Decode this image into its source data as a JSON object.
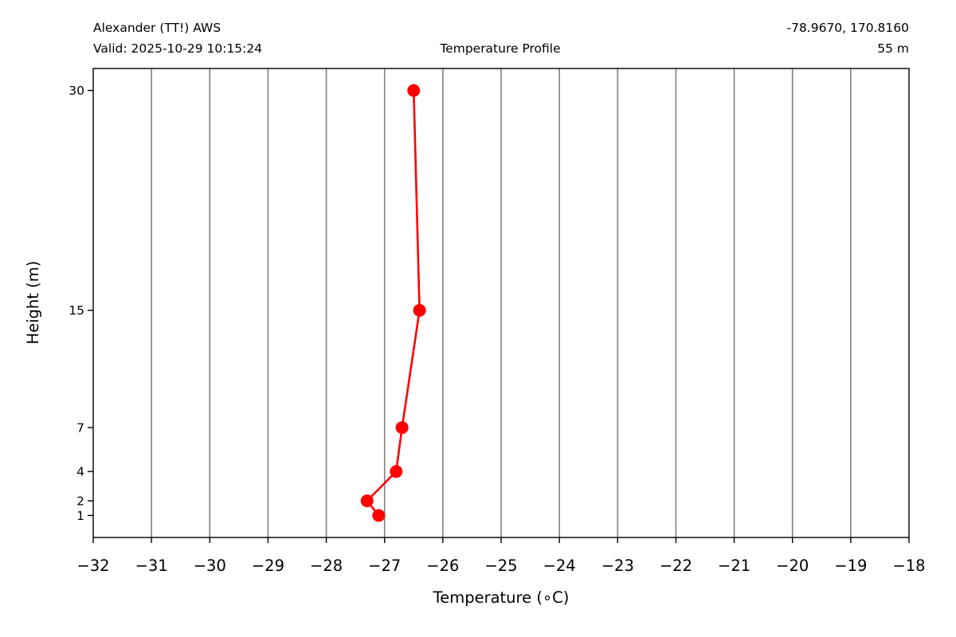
{
  "header": {
    "station": "Alexander (TT!) AWS",
    "valid": "Valid: 2025-10-29 10:15:24",
    "title": "Temperature Profile",
    "coords": "-78.9670, 170.8160",
    "elevation": "55 m"
  },
  "chart_data": {
    "type": "line",
    "title": "Temperature Profile",
    "xlabel": "Temperature (∘C)",
    "ylabel": "Height (m)",
    "xlim": [
      -32,
      -18
    ],
    "ylim": [
      -0.5,
      31.5
    ],
    "x_ticks": [
      -32,
      -31,
      -30,
      -29,
      -28,
      -27,
      -26,
      -25,
      -24,
      -23,
      -22,
      -21,
      -20,
      -19,
      -18
    ],
    "x_tick_labels": [
      "−32",
      "−31",
      "−30",
      "−29",
      "−28",
      "−27",
      "−26",
      "−25",
      "−24",
      "−23",
      "−22",
      "−21",
      "−20",
      "−19",
      "−18"
    ],
    "y_ticks": [
      1,
      2,
      4,
      7,
      15,
      30
    ],
    "y_tick_labels": [
      "1",
      "2",
      "4",
      "7",
      "15",
      "30"
    ],
    "grid": "vertical",
    "series": [
      {
        "color": "#ff0000",
        "points": [
          {
            "height": 1,
            "temp": -27.1
          },
          {
            "height": 2,
            "temp": -27.3
          },
          {
            "height": 4,
            "temp": -26.8
          },
          {
            "height": 7,
            "temp": -26.7
          },
          {
            "height": 15,
            "temp": -26.4
          },
          {
            "height": 30,
            "temp": -26.5
          }
        ]
      }
    ]
  }
}
